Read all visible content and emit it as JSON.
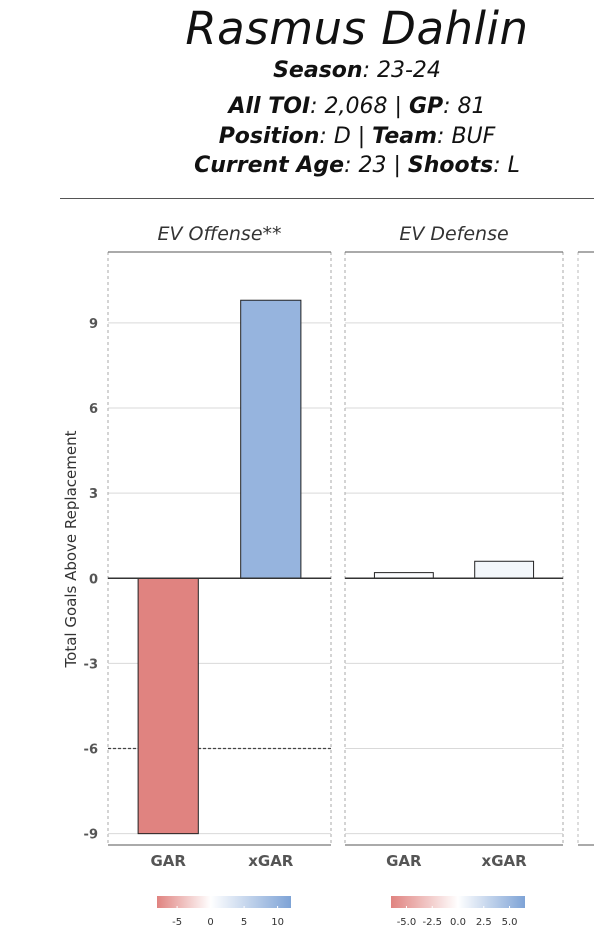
{
  "header": {
    "player_name": "Rasmus Dahlin",
    "season_label": "Season",
    "season_value": "23-24",
    "toi_label": "All TOI",
    "toi_value": "2,068",
    "gp_label": "GP",
    "gp_value": "81",
    "position_label": "Position",
    "position_value": "D",
    "team_label": "Team",
    "team_value": "BUF",
    "age_label": "Current Age",
    "age_value": "23",
    "shoots_label": "Shoots",
    "shoots_value": "L"
  },
  "colors": {
    "negative": "#e08380",
    "positive": "#7ea3d6",
    "light_pos": "#fcf0f0",
    "grid": "#d9d9d9",
    "frame": "#555555"
  },
  "chart_data": {
    "type": "bar",
    "ylabel": "Total Goals Above Replacement",
    "ylim": [
      -9.4,
      11.5
    ],
    "yticks": [
      9,
      6,
      3,
      0,
      -3,
      -6,
      -9
    ],
    "grid": true,
    "panels": [
      {
        "title": "EV Offense**",
        "categories": [
          "GAR",
          "xGAR"
        ],
        "values": [
          -9.0,
          9.8
        ],
        "reference_line": -6.0,
        "legend": {
          "ticks": [
            "-5",
            "0",
            "5",
            "10"
          ],
          "range": [
            -8,
            12
          ]
        }
      },
      {
        "title": "EV Defense",
        "categories": [
          "GAR",
          "xGAR"
        ],
        "values": [
          0.2,
          0.6
        ],
        "legend": {
          "ticks": [
            "-5.0",
            "-2.5",
            "0.0",
            "2.5",
            "5.0"
          ],
          "range": [
            -6.5,
            6.5
          ]
        }
      }
    ]
  }
}
